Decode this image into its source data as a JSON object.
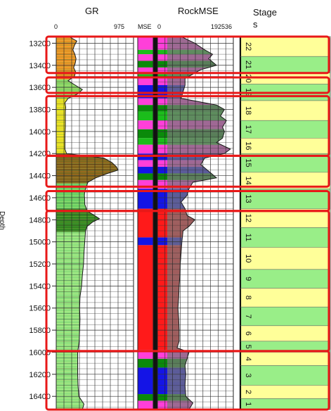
{
  "chart_data": {
    "type": "well-log",
    "y_axis": {
      "label": "Depth",
      "range": [
        13140,
        16520
      ],
      "ticks": [
        13200,
        13400,
        13600,
        13800,
        14000,
        14200,
        14400,
        14600,
        14800,
        15000,
        15200,
        15400,
        15600,
        15800,
        16000,
        16200,
        16400
      ]
    },
    "tracks": [
      {
        "title": "GR",
        "scale_min": "0",
        "scale_max": "975"
      },
      {
        "title": "",
        "subtitle": "MSE",
        "kind": "facies"
      },
      {
        "title": "RockMSE",
        "scale_min": "0",
        "scale_max": "192536"
      },
      {
        "title": "Stage",
        "subtitle": "s",
        "kind": "stages"
      }
    ],
    "gr_curve": [
      [
        13140,
        160
      ],
      [
        13180,
        260
      ],
      [
        13220,
        230
      ],
      [
        13260,
        210
      ],
      [
        13300,
        235
      ],
      [
        13340,
        250
      ],
      [
        13380,
        240
      ],
      [
        13420,
        220
      ],
      [
        13460,
        245
      ],
      [
        13500,
        230
      ],
      [
        13540,
        150
      ],
      [
        13580,
        240
      ],
      [
        13620,
        330
      ],
      [
        13660,
        270
      ],
      [
        13700,
        150
      ],
      [
        13740,
        110
      ],
      [
        13780,
        120
      ],
      [
        13820,
        115
      ],
      [
        13880,
        115
      ],
      [
        13960,
        115
      ],
      [
        14040,
        110
      ],
      [
        14100,
        110
      ],
      [
        14160,
        110
      ],
      [
        14200,
        130
      ],
      [
        14240,
        600
      ],
      [
        14280,
        700
      ],
      [
        14320,
        760
      ],
      [
        14350,
        780
      ],
      [
        14380,
        650
      ],
      [
        14420,
        500
      ],
      [
        14460,
        400
      ],
      [
        14500,
        380
      ],
      [
        14540,
        360
      ],
      [
        14580,
        355
      ],
      [
        14620,
        360
      ],
      [
        14660,
        360
      ],
      [
        14720,
        390
      ],
      [
        14760,
        480
      ],
      [
        14790,
        545
      ],
      [
        14820,
        460
      ],
      [
        14860,
        390
      ],
      [
        14900,
        370
      ],
      [
        15000,
        360
      ],
      [
        15100,
        350
      ],
      [
        15200,
        345
      ],
      [
        15300,
        330
      ],
      [
        15400,
        320
      ],
      [
        15500,
        300
      ],
      [
        15600,
        295
      ],
      [
        15700,
        300
      ],
      [
        15800,
        295
      ],
      [
        15900,
        290
      ],
      [
        16000,
        270
      ],
      [
        16100,
        270
      ],
      [
        16200,
        270
      ],
      [
        16300,
        275
      ],
      [
        16400,
        285
      ],
      [
        16470,
        350
      ],
      [
        16520,
        330
      ]
    ],
    "gr_fill_intervals": [
      {
        "top": 13140,
        "bottom": 13530,
        "color": "#ff8a1c"
      },
      {
        "top": 13530,
        "bottom": 13700,
        "color": "#8fd86a"
      },
      {
        "top": 13700,
        "bottom": 14200,
        "color": "#ffe51a"
      },
      {
        "top": 14200,
        "bottom": 14470,
        "color": "#8a4f10"
      },
      {
        "top": 14470,
        "bottom": 14700,
        "color": "#6fd46a"
      },
      {
        "top": 14700,
        "bottom": 14910,
        "color": "#2a7a18"
      },
      {
        "top": 14910,
        "bottom": 16520,
        "color": "#9be88a"
      }
    ],
    "rockmse_curve": [
      [
        13140,
        60000
      ],
      [
        13200,
        95000
      ],
      [
        13260,
        120000
      ],
      [
        13300,
        140000
      ],
      [
        13340,
        130000
      ],
      [
        13400,
        150000
      ],
      [
        13440,
        110000
      ],
      [
        13480,
        90000
      ],
      [
        13520,
        70000
      ],
      [
        13580,
        70000
      ],
      [
        13640,
        65000
      ],
      [
        13700,
        60000
      ],
      [
        13760,
        150000
      ],
      [
        13800,
        170000
      ],
      [
        13860,
        160000
      ],
      [
        13900,
        175000
      ],
      [
        13960,
        165000
      ],
      [
        14000,
        170000
      ],
      [
        14060,
        165000
      ],
      [
        14100,
        150000
      ],
      [
        14160,
        185000
      ],
      [
        14200,
        170000
      ],
      [
        14240,
        120000
      ],
      [
        14300,
        110000
      ],
      [
        14360,
        130000
      ],
      [
        14420,
        150000
      ],
      [
        14460,
        90000
      ],
      [
        14520,
        80000
      ],
      [
        14580,
        75000
      ],
      [
        14640,
        60000
      ],
      [
        14700,
        70000
      ],
      [
        14760,
        75000
      ],
      [
        14800,
        95000
      ],
      [
        14860,
        80000
      ],
      [
        14900,
        65000
      ],
      [
        15000,
        62000
      ],
      [
        15100,
        60000
      ],
      [
        15200,
        58000
      ],
      [
        15300,
        57000
      ],
      [
        15400,
        55000
      ],
      [
        15500,
        54000
      ],
      [
        15600,
        52000
      ],
      [
        15700,
        54000
      ],
      [
        15800,
        55000
      ],
      [
        15900,
        55000
      ],
      [
        15960,
        50000
      ],
      [
        16000,
        80000
      ],
      [
        16060,
        75000
      ],
      [
        16120,
        70000
      ],
      [
        16200,
        72000
      ],
      [
        16300,
        70000
      ],
      [
        16400,
        72000
      ],
      [
        16460,
        90000
      ],
      [
        16520,
        80000
      ]
    ],
    "mse_facies_intervals": [
      {
        "top": 13140,
        "bottom": 13260,
        "color": "#ff3fd9"
      },
      {
        "top": 13260,
        "bottom": 13300,
        "color": "#1bbd1b"
      },
      {
        "top": 13300,
        "bottom": 13360,
        "color": "#ff3fd9"
      },
      {
        "top": 13360,
        "bottom": 13420,
        "color": "#0a8a0a"
      },
      {
        "top": 13420,
        "bottom": 13480,
        "color": "#ff3fd9"
      },
      {
        "top": 13480,
        "bottom": 13520,
        "color": "#1bbd1b"
      },
      {
        "top": 13520,
        "bottom": 13580,
        "color": "#ff3fd9"
      },
      {
        "top": 13580,
        "bottom": 13700,
        "color": "#1414e6"
      },
      {
        "top": 13700,
        "bottom": 13760,
        "color": "#ff3fd9"
      },
      {
        "top": 13760,
        "bottom": 13820,
        "color": "#0a8a0a"
      },
      {
        "top": 13820,
        "bottom": 13900,
        "color": "#1bbd1b"
      },
      {
        "top": 13900,
        "bottom": 13980,
        "color": "#ff3fd9"
      },
      {
        "top": 13980,
        "bottom": 14060,
        "color": "#0a8a0a"
      },
      {
        "top": 14060,
        "bottom": 14120,
        "color": "#1bbd1b"
      },
      {
        "top": 14120,
        "bottom": 14200,
        "color": "#ff3fd9"
      },
      {
        "top": 14200,
        "bottom": 14260,
        "color": "#1414e6"
      },
      {
        "top": 14260,
        "bottom": 14320,
        "color": "#ff3fd9"
      },
      {
        "top": 14320,
        "bottom": 14380,
        "color": "#1414e6"
      },
      {
        "top": 14380,
        "bottom": 14440,
        "color": "#0a8a0a"
      },
      {
        "top": 14440,
        "bottom": 14520,
        "color": "#ff3fd9"
      },
      {
        "top": 14520,
        "bottom": 14700,
        "color": "#1414e6"
      },
      {
        "top": 14700,
        "bottom": 14960,
        "color": "#ff1a1a"
      },
      {
        "top": 14960,
        "bottom": 15030,
        "color": "#1414e6"
      },
      {
        "top": 15030,
        "bottom": 15980,
        "color": "#ff1a1a"
      },
      {
        "top": 15980,
        "bottom": 16060,
        "color": "#ff3fd9"
      },
      {
        "top": 16060,
        "bottom": 16140,
        "color": "#0a8a0a"
      },
      {
        "top": 16140,
        "bottom": 16380,
        "color": "#1414e6"
      },
      {
        "top": 16380,
        "bottom": 16440,
        "color": "#0a8a0a"
      },
      {
        "top": 16440,
        "bottom": 16520,
        "color": "#ff3fd9"
      }
    ],
    "stages": [
      {
        "label": "22",
        "top": 13140,
        "bottom": 13320,
        "color": "#ffff99"
      },
      {
        "label": "21",
        "top": 13320,
        "bottom": 13470,
        "color": "#99ee88"
      },
      {
        "label": "20",
        "top": 13470,
        "bottom": 13570,
        "color": "#ffff99"
      },
      {
        "label": "19",
        "top": 13570,
        "bottom": 13720,
        "color": "#99ee88"
      },
      {
        "label": "18",
        "top": 13720,
        "bottom": 13900,
        "color": "#ffff99"
      },
      {
        "label": "17",
        "top": 13900,
        "bottom": 14060,
        "color": "#99ee88"
      },
      {
        "label": "16",
        "top": 14060,
        "bottom": 14200,
        "color": "#ffff99"
      },
      {
        "label": "15",
        "top": 14200,
        "bottom": 14370,
        "color": "#99ee88"
      },
      {
        "label": "14",
        "top": 14370,
        "bottom": 14520,
        "color": "#ffff99"
      },
      {
        "label": "13",
        "top": 14520,
        "bottom": 14700,
        "color": "#99ee88"
      },
      {
        "label": "12",
        "top": 14700,
        "bottom": 14870,
        "color": "#ffff99"
      },
      {
        "label": "11",
        "top": 14870,
        "bottom": 15050,
        "color": "#99ee88"
      },
      {
        "label": "10",
        "top": 15050,
        "bottom": 15250,
        "color": "#ffff99"
      },
      {
        "label": "9",
        "top": 15250,
        "bottom": 15420,
        "color": "#99ee88"
      },
      {
        "label": "8",
        "top": 15420,
        "bottom": 15590,
        "color": "#ffff99"
      },
      {
        "label": "7",
        "top": 15590,
        "bottom": 15760,
        "color": "#99ee88"
      },
      {
        "label": "6",
        "top": 15760,
        "bottom": 15900,
        "color": "#ffff99"
      },
      {
        "label": "5",
        "top": 15900,
        "bottom": 16000,
        "color": "#99ee88"
      },
      {
        "label": "4",
        "top": 16000,
        "bottom": 16120,
        "color": "#ffff99"
      },
      {
        "label": "3",
        "top": 16120,
        "bottom": 16300,
        "color": "#99ee88"
      },
      {
        "label": "2",
        "top": 16300,
        "bottom": 16420,
        "color": "#ffff99"
      },
      {
        "label": "1",
        "top": 16420,
        "bottom": 16520,
        "color": "#99ee88"
      }
    ],
    "zone_boxes": [
      {
        "top": 13140,
        "bottom": 13470
      },
      {
        "top": 13510,
        "bottom": 13650
      },
      {
        "top": 13680,
        "bottom": 14220
      },
      {
        "top": 14220,
        "bottom": 14500
      },
      {
        "top": 14540,
        "bottom": 14720
      },
      {
        "top": 14720,
        "bottom": 15990
      },
      {
        "top": 15990,
        "bottom": 16520
      }
    ],
    "colors": {
      "highlight_box": "#e81818",
      "gr_curve": "#1a1a1a",
      "rockmse_fill": "#7a7a7a"
    }
  }
}
